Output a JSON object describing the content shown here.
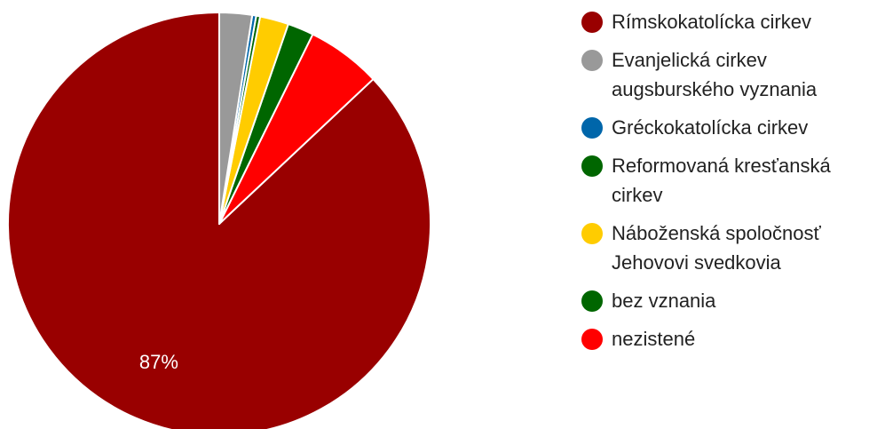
{
  "chart_data": {
    "type": "pie",
    "start_angle_deg": 0,
    "direction": "counterclockwise",
    "slices": [
      {
        "label": "Rímskokatolícka cirkev",
        "value": 87,
        "color": "#990000",
        "data_label": "87%"
      },
      {
        "label": "nezistené",
        "value": 5.7,
        "color": "#ff0000",
        "data_label": ""
      },
      {
        "label": "bez vznania",
        "value": 2.0,
        "color": "#006600",
        "data_label": ""
      },
      {
        "label": "Náboženská spoločnosť Jehovovi svedkovia",
        "value": 2.2,
        "color": "#ffcc00",
        "data_label": ""
      },
      {
        "label": "Reformovaná kresťanská cirkev",
        "value": 0.3,
        "color": "#006600",
        "data_label": ""
      },
      {
        "label": "Gréckokatolícka cirkev",
        "value": 0.3,
        "color": "#0066aa",
        "data_label": ""
      },
      {
        "label": "Evanjelická cirkev augsburského vyznania",
        "value": 2.5,
        "color": "#999999",
        "data_label": ""
      }
    ],
    "legend": {
      "position": "right",
      "items": [
        {
          "label": "Rímskokatolícka cirkev",
          "color": "#990000"
        },
        {
          "label": "Evanjelická cirkev augsburského vyznania",
          "color": "#999999"
        },
        {
          "label": "Gréckokatolícka cirkev",
          "color": "#0066aa"
        },
        {
          "label": "Reformovaná kresťanská cirkev",
          "color": "#006600"
        },
        {
          "label": "Náboženská spoločnosť Jehovovi svedkovia",
          "color": "#ffcc00"
        },
        {
          "label": "bez vznania",
          "color": "#006600"
        },
        {
          "label": "nezistené",
          "color": "#ff0000"
        }
      ]
    }
  }
}
